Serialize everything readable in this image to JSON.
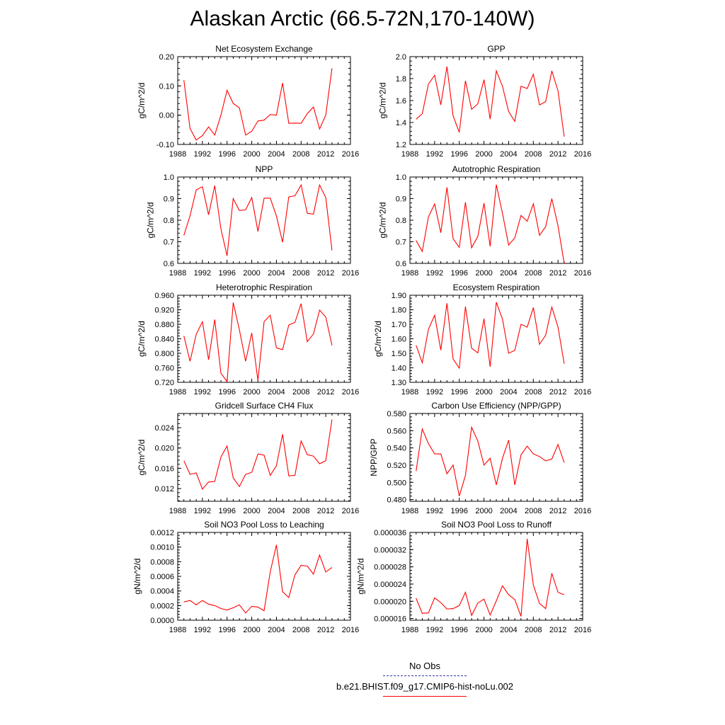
{
  "title": "Alaskan Arctic (66.5-72N,170-140W)",
  "legend": [
    {
      "label": "No Obs",
      "color": "#3333aa",
      "dash": true
    },
    {
      "label": "b.e21.BHIST.f09_g17.CMIP6-hist-noLu.002",
      "color": "#ff0000",
      "dash": false
    }
  ],
  "chart_data": [
    {
      "type": "line",
      "title": "Net Ecosystem Exchange",
      "ylabel": "gC/m^2/d",
      "xlim": [
        1988,
        2016
      ],
      "ylim": [
        -0.1,
        0.2
      ],
      "xticks": [
        "1988",
        "1992",
        "1996",
        "2000",
        "2004",
        "2008",
        "2012",
        "2016"
      ],
      "yticks": [
        "-0.10",
        "0.00",
        "0.10",
        "0.20"
      ],
      "x": [
        1989,
        1990,
        1991,
        1992,
        1993,
        1994,
        1995,
        1996,
        1997,
        1998,
        1999,
        2000,
        2001,
        2002,
        2003,
        2004,
        2005,
        2006,
        2007,
        2008,
        2009,
        2010,
        2011,
        2012,
        2013
      ],
      "series": [
        {
          "color": "#ff0000",
          "values": [
            0.12,
            -0.045,
            -0.085,
            -0.07,
            -0.04,
            -0.068,
            0.0,
            0.085,
            0.04,
            0.025,
            -0.068,
            -0.055,
            -0.02,
            -0.017,
            0.002,
            0.0,
            0.11,
            -0.028,
            -0.027,
            -0.028,
            0.005,
            0.028,
            -0.047,
            0.0,
            0.16
          ]
        }
      ]
    },
    {
      "type": "line",
      "title": "GPP",
      "ylabel": "gC/m^2/d",
      "xlim": [
        1988,
        2016
      ],
      "ylim": [
        1.2,
        2.0
      ],
      "xticks": [
        "1988",
        "1992",
        "1996",
        "2000",
        "2004",
        "2008",
        "2012",
        "2016"
      ],
      "yticks": [
        "1.2",
        "1.4",
        "1.6",
        "1.8",
        "2.0"
      ],
      "x": [
        1989,
        1990,
        1991,
        1992,
        1993,
        1994,
        1995,
        1996,
        1997,
        1998,
        1999,
        2000,
        2001,
        2002,
        2003,
        2004,
        2005,
        2006,
        2007,
        2008,
        2009,
        2010,
        2011,
        2012,
        2013
      ],
      "series": [
        {
          "color": "#ff0000",
          "values": [
            1.43,
            1.48,
            1.75,
            1.83,
            1.56,
            1.91,
            1.46,
            1.31,
            1.78,
            1.52,
            1.57,
            1.79,
            1.43,
            1.87,
            1.73,
            1.5,
            1.41,
            1.73,
            1.71,
            1.84,
            1.56,
            1.59,
            1.87,
            1.69,
            1.27
          ]
        }
      ]
    },
    {
      "type": "line",
      "title": "NPP",
      "ylabel": "gC/m^2/d",
      "xlim": [
        1988,
        2016
      ],
      "ylim": [
        0.6,
        1.0
      ],
      "xticks": [
        "1988",
        "1992",
        "1996",
        "2000",
        "2004",
        "2008",
        "2012",
        "2016"
      ],
      "yticks": [
        "0.6",
        "0.7",
        "0.8",
        "0.9",
        "1.0"
      ],
      "x": [
        1989,
        1990,
        1991,
        1992,
        1993,
        1994,
        1995,
        1996,
        1997,
        1998,
        1999,
        2000,
        2001,
        2002,
        2003,
        2004,
        2005,
        2006,
        2007,
        2008,
        2009,
        2010,
        2011,
        2012,
        2013
      ],
      "series": [
        {
          "color": "#ff0000",
          "values": [
            0.73,
            0.82,
            0.94,
            0.955,
            0.825,
            0.96,
            0.76,
            0.635,
            0.9,
            0.845,
            0.848,
            0.905,
            0.748,
            0.902,
            0.902,
            0.82,
            0.698,
            0.908,
            0.913,
            0.963,
            0.832,
            0.828,
            0.963,
            0.905,
            0.66
          ]
        }
      ]
    },
    {
      "type": "line",
      "title": "Autotrophic Respiration",
      "ylabel": "gC/m^2/d",
      "xlim": [
        1988,
        2016
      ],
      "ylim": [
        0.6,
        1.0
      ],
      "xticks": [
        "1988",
        "1992",
        "1996",
        "2000",
        "2004",
        "2008",
        "2012",
        "2016"
      ],
      "yticks": [
        "0.6",
        "0.7",
        "0.8",
        "0.9",
        "1.0"
      ],
      "x": [
        1989,
        1990,
        1991,
        1992,
        1993,
        1994,
        1995,
        1996,
        1997,
        1998,
        1999,
        2000,
        2001,
        2002,
        2003,
        2004,
        2005,
        2006,
        2007,
        2008,
        2009,
        2010,
        2011,
        2012,
        2013
      ],
      "series": [
        {
          "color": "#ff0000",
          "values": [
            0.706,
            0.655,
            0.815,
            0.875,
            0.742,
            0.952,
            0.714,
            0.674,
            0.883,
            0.672,
            0.725,
            0.879,
            0.679,
            0.965,
            0.832,
            0.685,
            0.718,
            0.822,
            0.795,
            0.876,
            0.73,
            0.77,
            0.9,
            0.775,
            0.6
          ]
        }
      ]
    },
    {
      "type": "line",
      "title": "Heterotrophic Respiration",
      "ylabel": "gC/m^2/d",
      "xlim": [
        1988,
        2016
      ],
      "ylim": [
        0.72,
        0.96
      ],
      "xticks": [
        "1988",
        "1992",
        "1996",
        "2000",
        "2004",
        "2008",
        "2012",
        "2016"
      ],
      "yticks": [
        "0.720",
        "0.760",
        "0.800",
        "0.840",
        "0.880",
        "0.920",
        "0.960"
      ],
      "x": [
        1989,
        1990,
        1991,
        1992,
        1993,
        1994,
        1995,
        1996,
        1997,
        1998,
        1999,
        2000,
        2001,
        2002,
        2003,
        2004,
        2005,
        2006,
        2007,
        2008,
        2009,
        2010,
        2011,
        2012,
        2013
      ],
      "series": [
        {
          "color": "#ff0000",
          "values": [
            0.848,
            0.778,
            0.852,
            0.887,
            0.782,
            0.893,
            0.745,
            0.722,
            0.94,
            0.865,
            0.778,
            0.856,
            0.725,
            0.887,
            0.905,
            0.815,
            0.81,
            0.878,
            0.885,
            0.937,
            0.832,
            0.853,
            0.919,
            0.9,
            0.822
          ]
        }
      ]
    },
    {
      "type": "line",
      "title": "Ecosystem Respiration",
      "ylabel": "gC/m^2/d",
      "xlim": [
        1988,
        2016
      ],
      "ylim": [
        1.3,
        1.9
      ],
      "xticks": [
        "1988",
        "1992",
        "1996",
        "2000",
        "2004",
        "2008",
        "2012",
        "2016"
      ],
      "yticks": [
        "1.30",
        "1.40",
        "1.50",
        "1.60",
        "1.70",
        "1.80",
        "1.90"
      ],
      "x": [
        1989,
        1990,
        1991,
        1992,
        1993,
        1994,
        1995,
        1996,
        1997,
        1998,
        1999,
        2000,
        2001,
        2002,
        2003,
        2004,
        2005,
        2006,
        2007,
        2008,
        2009,
        2010,
        2011,
        2012,
        2013
      ],
      "series": [
        {
          "color": "#ff0000",
          "values": [
            1.555,
            1.435,
            1.665,
            1.762,
            1.522,
            1.845,
            1.46,
            1.398,
            1.822,
            1.535,
            1.503,
            1.738,
            1.407,
            1.852,
            1.735,
            1.5,
            1.52,
            1.7,
            1.68,
            1.815,
            1.562,
            1.625,
            1.818,
            1.682,
            1.428
          ]
        }
      ]
    },
    {
      "type": "line",
      "title": "Gridcell Surface CH4 Flux",
      "ylabel": "gC/m^2/d",
      "xlim": [
        1988,
        2016
      ],
      "ylim": [
        0.0095,
        0.0268
      ],
      "xticks": [
        "1988",
        "1992",
        "1996",
        "2000",
        "2004",
        "2008",
        "2012",
        "2016"
      ],
      "yticks": [
        "0.012",
        "0.016",
        "0.020",
        "0.024"
      ],
      "x": [
        1989,
        1990,
        1991,
        1992,
        1993,
        1994,
        1995,
        1996,
        1997,
        1998,
        1999,
        2000,
        2001,
        2002,
        2003,
        2004,
        2005,
        2006,
        2007,
        2008,
        2009,
        2010,
        2011,
        2012,
        2013
      ],
      "series": [
        {
          "color": "#ff0000",
          "values": [
            0.0175,
            0.0148,
            0.0151,
            0.0119,
            0.0133,
            0.0134,
            0.0182,
            0.0204,
            0.0141,
            0.0124,
            0.0148,
            0.0152,
            0.0188,
            0.0186,
            0.0146,
            0.0165,
            0.0227,
            0.0145,
            0.0146,
            0.0214,
            0.0187,
            0.0184,
            0.0169,
            0.0175,
            0.0256
          ]
        }
      ]
    },
    {
      "type": "line",
      "title": "Carbon Use Efficiency (NPP/GPP)",
      "ylabel": "NPP/GPP",
      "xlim": [
        1988,
        2016
      ],
      "ylim": [
        0.478,
        0.58
      ],
      "xticks": [
        "1988",
        "1992",
        "1996",
        "2000",
        "2004",
        "2008",
        "2012",
        "2016"
      ],
      "yticks": [
        "0.480",
        "0.500",
        "0.520",
        "0.540",
        "0.560",
        "0.580"
      ],
      "x": [
        1989,
        1990,
        1991,
        1992,
        1993,
        1994,
        1995,
        1996,
        1997,
        1998,
        1999,
        2000,
        2001,
        2002,
        2003,
        2004,
        2005,
        2006,
        2007,
        2008,
        2009,
        2010,
        2011,
        2012,
        2013
      ],
      "series": [
        {
          "color": "#ff0000",
          "values": [
            0.513,
            0.562,
            0.545,
            0.533,
            0.533,
            0.51,
            0.52,
            0.484,
            0.508,
            0.564,
            0.548,
            0.52,
            0.528,
            0.497,
            0.528,
            0.549,
            0.497,
            0.532,
            0.542,
            0.533,
            0.53,
            0.525,
            0.527,
            0.544,
            0.523
          ]
        }
      ]
    },
    {
      "type": "line",
      "title": "Soil NO3 Pool Loss to Leaching",
      "ylabel": "gN/m^2/d",
      "xlim": [
        1988,
        2016
      ],
      "ylim": [
        0.0,
        0.0012
      ],
      "xticks": [
        "1988",
        "1992",
        "1996",
        "2000",
        "2004",
        "2008",
        "2012",
        "2016"
      ],
      "yticks": [
        "0.0000",
        "0.0002",
        "0.0004",
        "0.0006",
        "0.0008",
        "0.0010",
        "0.0012"
      ],
      "x": [
        1989,
        1990,
        1991,
        1992,
        1993,
        1994,
        1995,
        1996,
        1997,
        1998,
        1999,
        2000,
        2001,
        2002,
        2003,
        2004,
        2005,
        2006,
        2007,
        2008,
        2009,
        2010,
        2011,
        2012,
        2013
      ],
      "series": [
        {
          "color": "#ff0000",
          "values": [
            0.00025,
            0.00027,
            0.00021,
            0.00027,
            0.00022,
            0.0002,
            0.00016,
            0.00014,
            0.00017,
            0.00021,
            0.0001,
            0.00019,
            0.00018,
            0.00013,
            0.00066,
            0.00103,
            0.00039,
            0.00031,
            0.00062,
            0.00075,
            0.00074,
            0.00063,
            0.00089,
            0.00066,
            0.00072
          ]
        }
      ]
    },
    {
      "type": "line",
      "title": "Soil NO3 Pool Loss to Runoff",
      "ylabel": "gN/m^2/d",
      "xlim": [
        1988,
        2016
      ],
      "ylim": [
        1.56e-05,
        3.6e-05
      ],
      "xticks": [
        "1988",
        "1992",
        "1996",
        "2000",
        "2004",
        "2008",
        "2012",
        "2016"
      ],
      "yticks": [
        "0.000016",
        "0.000020",
        "0.000024",
        "0.000028",
        "0.000032",
        "0.000036"
      ],
      "x": [
        1989,
        1990,
        1991,
        1992,
        1993,
        1994,
        1995,
        1996,
        1997,
        1998,
        1999,
        2000,
        2001,
        2002,
        2003,
        2004,
        2005,
        2006,
        2007,
        2008,
        2009,
        2010,
        2011,
        2012,
        2013
      ],
      "series": [
        {
          "color": "#ff0000",
          "values": [
            2.07e-05,
            1.72e-05,
            1.73e-05,
            2.08e-05,
            1.97e-05,
            1.82e-05,
            1.83e-05,
            1.9e-05,
            2.21e-05,
            1.67e-05,
            1.96e-05,
            2.05e-05,
            1.68e-05,
            2.01e-05,
            2.36e-05,
            2.15e-05,
            2.04e-05,
            1.65e-05,
            3.45e-05,
            2.38e-05,
            1.95e-05,
            1.83e-05,
            2.65e-05,
            2.21e-05,
            2.15e-05
          ]
        }
      ]
    }
  ]
}
